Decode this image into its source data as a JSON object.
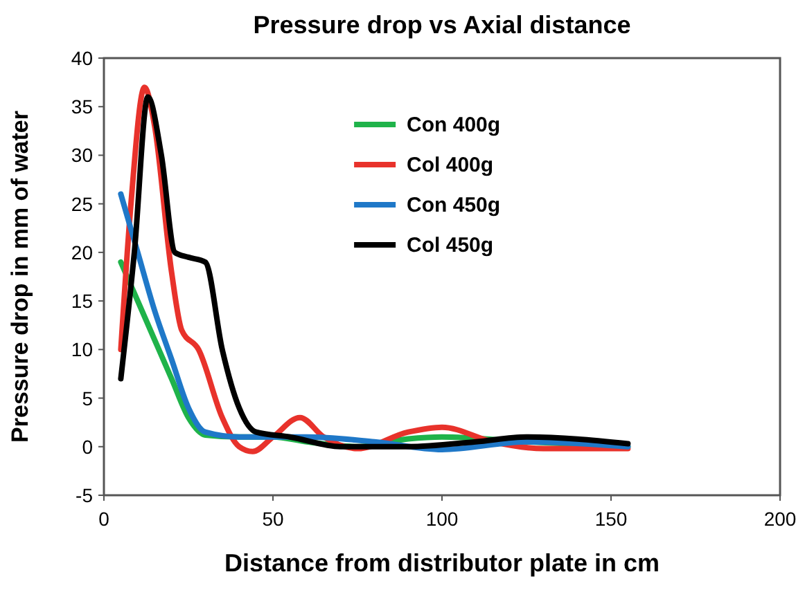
{
  "chart_data": {
    "type": "line",
    "title": "Pressure drop vs Axial distance",
    "xlabel": "Distance from distributor plate in cm",
    "ylabel": "Pressure drop in mm of water",
    "xlim": [
      0,
      200
    ],
    "xticks": [
      0,
      50,
      100,
      150,
      200
    ],
    "ylim": [
      -5,
      40
    ],
    "yticks": [
      -5,
      0,
      5,
      10,
      15,
      20,
      25,
      30,
      35,
      40
    ],
    "legend": "top right",
    "grid": false,
    "series": [
      {
        "name": "Con 400g",
        "color": "#1fb34a",
        "x": [
          5,
          10,
          15,
          20,
          25,
          30,
          40,
          50,
          60,
          75,
          90,
          100,
          125,
          155
        ],
        "values": [
          19,
          15,
          11,
          7,
          3,
          1.2,
          1,
          1,
          0.5,
          0,
          0.8,
          1,
          0.5,
          0
        ]
      },
      {
        "name": "Col 400g",
        "color": "#e8322b",
        "x": [
          5,
          8,
          12,
          15,
          20,
          23,
          28,
          35,
          40,
          44,
          50,
          58,
          65,
          75,
          90,
          100,
          115,
          130,
          155
        ],
        "values": [
          10,
          25,
          37,
          33,
          18,
          12,
          10,
          3,
          0,
          -0.5,
          1,
          3,
          1,
          -0.2,
          1.5,
          2,
          0.5,
          -0.2,
          -0.2
        ]
      },
      {
        "name": "Con 450g",
        "color": "#1f78c8",
        "x": [
          5,
          10,
          15,
          20,
          25,
          30,
          40,
          60,
          80,
          100,
          125,
          155
        ],
        "values": [
          26,
          20,
          14,
          9,
          4,
          1.5,
          1,
          1,
          0.5,
          -0.3,
          0.5,
          0
        ]
      },
      {
        "name": "Col 450g",
        "color": "#000000",
        "x": [
          5,
          9,
          13,
          17,
          21,
          25,
          30,
          35,
          40,
          45,
          55,
          70,
          90,
          110,
          125,
          155
        ],
        "values": [
          7,
          20,
          36,
          30,
          20,
          19.5,
          19,
          10,
          4,
          1.5,
          1,
          0,
          0,
          0.5,
          1,
          0.3
        ]
      }
    ]
  }
}
